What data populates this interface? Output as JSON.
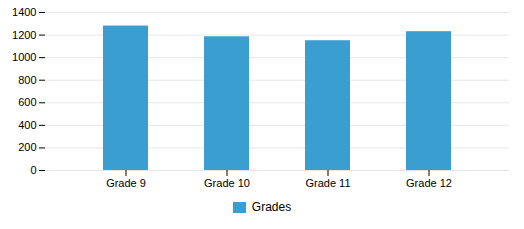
{
  "chart_data": {
    "type": "bar",
    "categories": [
      "Grade 9",
      "Grade 10",
      "Grade 11",
      "Grade 12"
    ],
    "values": [
      1280,
      1185,
      1150,
      1230
    ],
    "color": "#3a9fd0",
    "legend_label": "Grades",
    "ylim": [
      0,
      1400
    ],
    "yticks": [
      0,
      200,
      400,
      600,
      800,
      1000,
      1200,
      1400
    ],
    "grid": true,
    "legend": "bottom"
  }
}
